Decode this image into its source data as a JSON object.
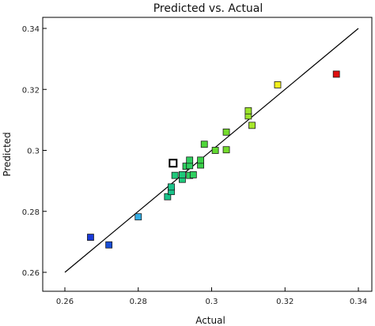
{
  "chart_data": {
    "type": "scatter",
    "title": "Predicted vs. Actual",
    "xlabel": "Actual",
    "ylabel": "Predicted",
    "xlim": [
      0.26,
      0.34
    ],
    "ylim": [
      0.26,
      0.34
    ],
    "xticks": [
      "0.26",
      "0.28",
      "0.3",
      "0.32",
      "0.34"
    ],
    "yticks": [
      "0.26",
      "0.28",
      "0.3",
      "0.32",
      "0.34"
    ],
    "grid": false,
    "reference_line": {
      "x": [
        0.26,
        0.34
      ],
      "y": [
        0.26,
        0.34
      ],
      "color": "#000000"
    },
    "points": [
      {
        "x": 0.267,
        "y": 0.2715,
        "color": "#1a3ad6"
      },
      {
        "x": 0.272,
        "y": 0.269,
        "color": "#1a4fd6"
      },
      {
        "x": 0.28,
        "y": 0.2782,
        "color": "#33aee6"
      },
      {
        "x": 0.288,
        "y": 0.2848,
        "color": "#18c48a"
      },
      {
        "x": 0.289,
        "y": 0.2865,
        "color": "#18c48a"
      },
      {
        "x": 0.289,
        "y": 0.288,
        "color": "#18c48a"
      },
      {
        "x": 0.2895,
        "y": 0.2958,
        "color": "#ffffff",
        "hollow": true
      },
      {
        "x": 0.29,
        "y": 0.2918,
        "color": "#1ec97a"
      },
      {
        "x": 0.292,
        "y": 0.2905,
        "color": "#1ec97a"
      },
      {
        "x": 0.292,
        "y": 0.292,
        "color": "#1ec97a"
      },
      {
        "x": 0.293,
        "y": 0.2948,
        "color": "#2ecf5f"
      },
      {
        "x": 0.294,
        "y": 0.2918,
        "color": "#2ecf5f"
      },
      {
        "x": 0.294,
        "y": 0.295,
        "color": "#2ecf5f"
      },
      {
        "x": 0.294,
        "y": 0.2968,
        "color": "#2ecf5f"
      },
      {
        "x": 0.295,
        "y": 0.292,
        "color": "#2ecf5f"
      },
      {
        "x": 0.297,
        "y": 0.2952,
        "color": "#3bd24a"
      },
      {
        "x": 0.297,
        "y": 0.2968,
        "color": "#3bd24a"
      },
      {
        "x": 0.298,
        "y": 0.302,
        "color": "#4fd63a"
      },
      {
        "x": 0.301,
        "y": 0.3,
        "color": "#62da30"
      },
      {
        "x": 0.304,
        "y": 0.3002,
        "color": "#74dc2c"
      },
      {
        "x": 0.304,
        "y": 0.306,
        "color": "#74dc2c"
      },
      {
        "x": 0.31,
        "y": 0.3113,
        "color": "#9be42a"
      },
      {
        "x": 0.31,
        "y": 0.313,
        "color": "#9be42a"
      },
      {
        "x": 0.311,
        "y": 0.3082,
        "color": "#a6e62a"
      },
      {
        "x": 0.318,
        "y": 0.3215,
        "color": "#f2f01e"
      },
      {
        "x": 0.334,
        "y": 0.325,
        "color": "#e01010"
      }
    ]
  }
}
